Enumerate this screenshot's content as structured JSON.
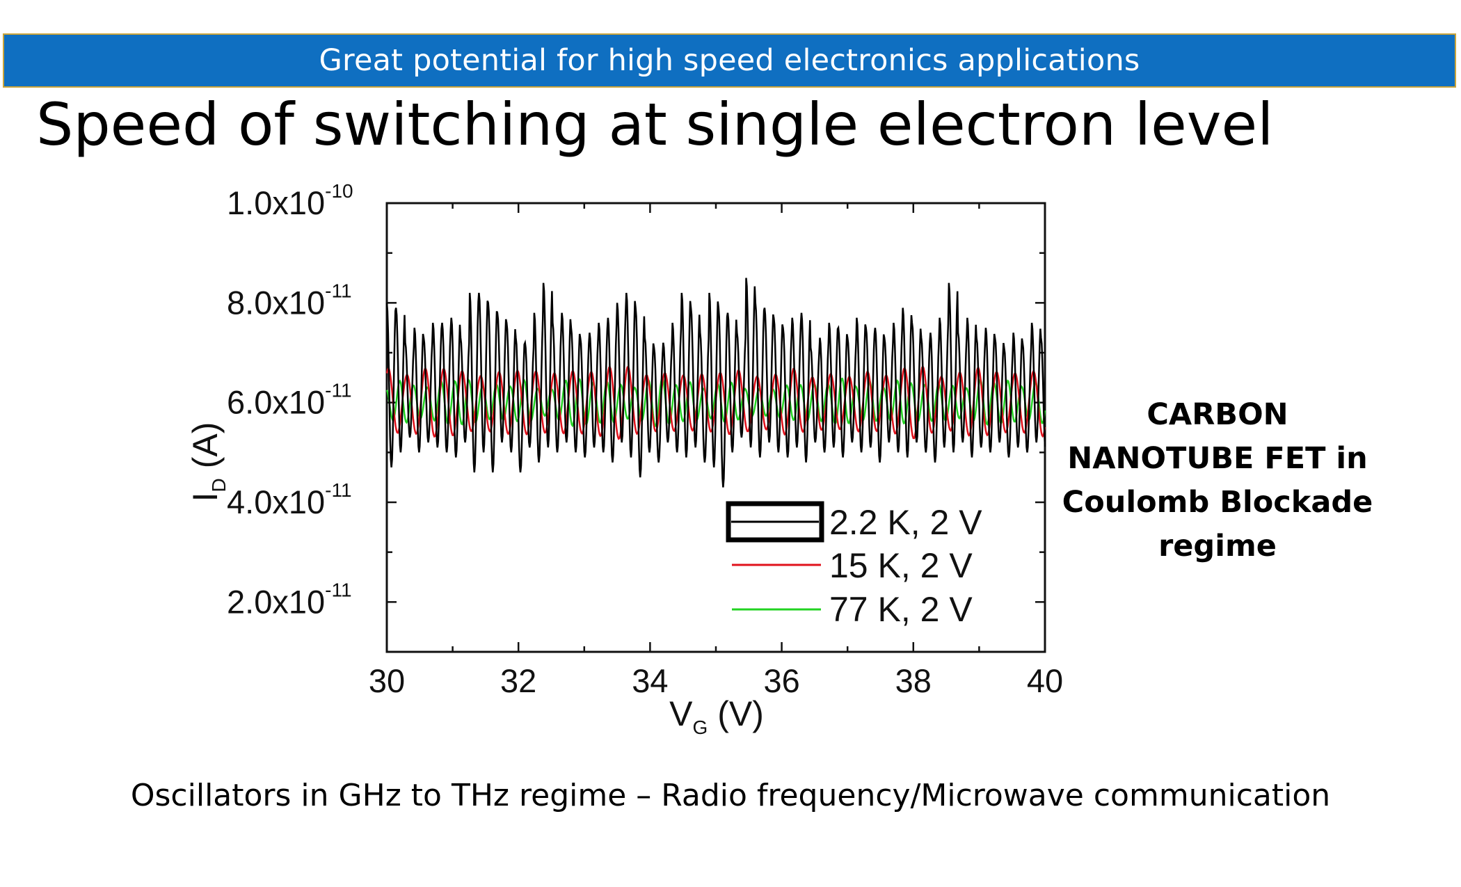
{
  "banner": {
    "text": "Great potential for high speed electronics applications"
  },
  "title": "Speed of switching at single electron level",
  "side_note": {
    "lines": [
      "CARBON",
      "NANOTUBE FET in",
      "Coulomb Blockade",
      "regime"
    ]
  },
  "caption": "Oscillators in GHz to THz regime – Radio frequency/Microwave communication",
  "colors": {
    "banner": "#0f6fc1",
    "series_2_2K": "#000000",
    "series_15K": "#e0121c",
    "series_77K": "#22d322"
  },
  "chart_data": {
    "type": "line",
    "xlabel": {
      "main": "V",
      "sub": "G",
      "unit": " (V)"
    },
    "ylabel": {
      "main": "I",
      "sub": "D",
      "unit": " (A)"
    },
    "xlim": [
      30,
      40
    ],
    "ylim": [
      1e-11,
      1e-10
    ],
    "x_ticks": [
      30,
      32,
      34,
      36,
      38,
      40
    ],
    "x_tick_labels": [
      "30",
      "32",
      "34",
      "36",
      "38",
      "40"
    ],
    "y_ticks": [
      2e-11,
      4e-11,
      6e-11,
      8e-11,
      1e-10
    ],
    "y_tick_labels": [
      {
        "mant": "2.0x10",
        "exp": "-11"
      },
      {
        "mant": "4.0x10",
        "exp": "-11"
      },
      {
        "mant": "6.0x10",
        "exp": "-11"
      },
      {
        "mant": "8.0x10",
        "exp": "-11"
      },
      {
        "mant": "1.0x10",
        "exp": "-10"
      }
    ],
    "legend_position": "bottom-right",
    "series": [
      {
        "name": "2.2 K, 2 V",
        "color": "#000000",
        "x": [
          30.0,
          30.14,
          30.28,
          30.42,
          30.56,
          30.7,
          30.84,
          30.98,
          31.12,
          31.26,
          31.4,
          31.54,
          31.68,
          31.82,
          31.96,
          32.1,
          32.24,
          32.38,
          32.52,
          32.66,
          32.8,
          32.94,
          33.08,
          33.22,
          33.36,
          33.5,
          33.64,
          33.78,
          33.92,
          34.06,
          34.2,
          34.34,
          34.48,
          34.62,
          34.76,
          34.9,
          35.04,
          35.18,
          35.32,
          35.46,
          35.6,
          35.74,
          35.88,
          36.02,
          36.16,
          36.3,
          36.44,
          36.58,
          36.72,
          36.86,
          37.0,
          37.14,
          37.28,
          37.42,
          37.56,
          37.7,
          37.84,
          37.98,
          38.12,
          38.26,
          38.4,
          38.54,
          38.68,
          38.82,
          38.96,
          39.1,
          39.24,
          39.38,
          39.52,
          39.66,
          39.8,
          39.94
        ],
        "y_peaks": [
          8e-11,
          7.9e-11,
          7.2e-11,
          7.5e-11,
          7.3e-11,
          7.6e-11,
          7.6e-11,
          7.7e-11,
          7.3e-11,
          8.2e-11,
          8.2e-11,
          8e-11,
          7.8e-11,
          7.6e-11,
          7.3e-11,
          7.2e-11,
          7.8e-11,
          8.4e-11,
          7.6e-11,
          7.8e-11,
          7.5e-11,
          7.3e-11,
          7.4e-11,
          7.6e-11,
          7.7e-11,
          8e-11,
          8.2e-11,
          7.9e-11,
          7.3e-11,
          7.1e-11,
          7.2e-11,
          7.6e-11,
          8.2e-11,
          7.9e-11,
          7.4e-11,
          8.2e-11,
          7.9e-11,
          7.8e-11,
          7.4e-11,
          8.5e-11,
          8e-11,
          7.9e-11,
          7.7e-11,
          7.5e-11,
          7.7e-11,
          7.8e-11,
          7.1e-11,
          7.3e-11,
          7.6e-11,
          7.5e-11,
          7.3e-11,
          7.7e-11,
          7.5e-11,
          7.5e-11,
          7.3e-11,
          7.6e-11,
          7.9e-11,
          7.6e-11,
          7.3e-11,
          7.4e-11,
          7.7e-11,
          8.4e-11,
          7.4e-11,
          7.7e-11,
          7.3e-11,
          7.5e-11,
          7.3e-11,
          7.1e-11,
          7.4e-11,
          7.2e-11,
          7.6e-11,
          7.3e-11
        ],
        "y_troughs": [
          4.7e-11,
          5e-11,
          5.3e-11,
          5e-11,
          5.2e-11,
          5.1e-11,
          5e-11,
          4.9e-11,
          5.2e-11,
          4.6e-11,
          5e-11,
          4.6e-11,
          5.2e-11,
          5e-11,
          4.6e-11,
          5.1e-11,
          4.8e-11,
          5.1e-11,
          5e-11,
          5.2e-11,
          5e-11,
          4.9e-11,
          5.1e-11,
          5e-11,
          4.8e-11,
          5.2e-11,
          4.9e-11,
          4.5e-11,
          5e-11,
          4.8e-11,
          5.2e-11,
          5e-11,
          4.9e-11,
          5.1e-11,
          4.8e-11,
          4.7e-11,
          4.3e-11,
          5e-11,
          5.3e-11,
          5.1e-11,
          4.9e-11,
          5.2e-11,
          5e-11,
          4.9e-11,
          5.1e-11,
          4.8e-11,
          5.2e-11,
          5e-11,
          5.1e-11,
          4.9e-11,
          5.2e-11,
          5e-11,
          5.1e-11,
          4.8e-11,
          5.2e-11,
          5e-11,
          4.9e-11,
          5.2e-11,
          5e-11,
          4.8e-11,
          5.1e-11,
          5e-11,
          5.2e-11,
          4.9e-11,
          5.1e-11,
          5e-11,
          5.2e-11,
          4.9e-11,
          5.1e-11,
          5e-11,
          5.2e-11,
          5e-11
        ]
      },
      {
        "name": "15 K, 2 V",
        "color": "#e0121c",
        "period": 0.28,
        "center": 6e-11,
        "amplitude_range": [
          5e-12,
          7.5e-12
        ]
      },
      {
        "name": "77 K, 2 V",
        "color": "#22d322",
        "period": 0.21,
        "center": 6e-11,
        "amplitude_range": [
          2.5e-12,
          5e-12
        ]
      }
    ]
  }
}
